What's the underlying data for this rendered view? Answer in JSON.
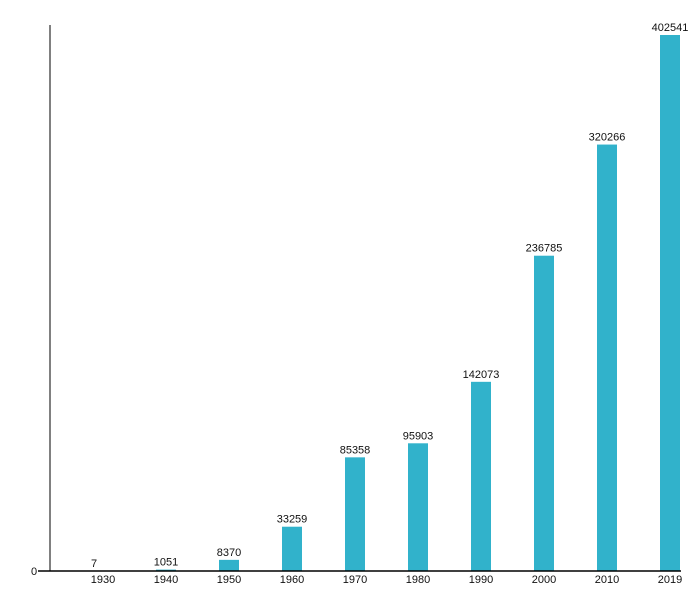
{
  "chart_data": {
    "type": "bar",
    "title": "",
    "xlabel": "",
    "ylabel": "",
    "categories": [
      "1930",
      "1940",
      "1950",
      "1960",
      "1970",
      "1980",
      "1990",
      "2000",
      "2010",
      "2019"
    ],
    "values": [
      7,
      1051,
      8370,
      33259,
      85358,
      95903,
      142073,
      236785,
      320266,
      402541
    ],
    "y_tick_labels": [
      "0"
    ],
    "ylim": [
      0,
      409000
    ],
    "grid": false,
    "bar_color": "#31b2cb"
  }
}
